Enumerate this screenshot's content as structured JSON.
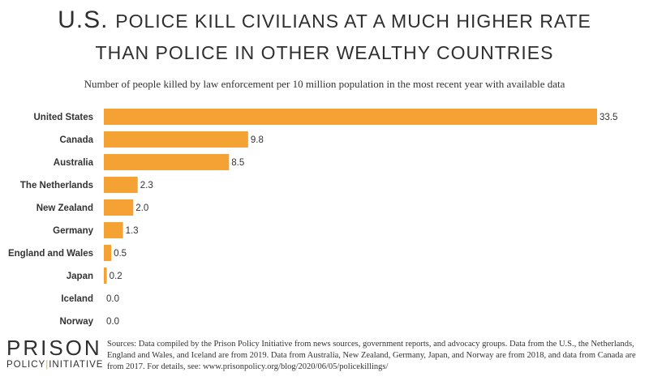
{
  "title": {
    "line1": {
      "big": "U.S.",
      "rest": "police kill civilians at a much higher rate"
    },
    "line2": {
      "rest": "than police in other wealthy countries"
    }
  },
  "subtitle": "Number of people killed by law enforcement per 10 million population in the most recent year with available data",
  "logo": {
    "line1": "PRISON",
    "line2a": "POLICY",
    "line2b": "INITIATIVE"
  },
  "sources": "Sources: Data compiled by the Prison Policy Initiative from news sources, government reports, and advocacy groups. Data from the U.S., the Netherlands, England and Wales, and Iceland are from 2019. Data from Australia, New Zealand, Germany, Japan, and Norway are from 2018, and data from Canada are from 2017. For details,  see: www.prisonpolicy.org/blog/2020/06/05/policekillings/",
  "colors": {
    "bar": "#f4a233",
    "text": "#333333"
  },
  "chart_data": {
    "type": "bar",
    "orientation": "horizontal",
    "categories": [
      "United States",
      "Canada",
      "Australia",
      "The Netherlands",
      "New Zealand",
      "Germany",
      "England and Wales",
      "Japan",
      "Iceland",
      "Norway"
    ],
    "values": [
      33.5,
      9.8,
      8.5,
      2.3,
      2.0,
      1.3,
      0.5,
      0.2,
      0.0,
      0.0
    ],
    "value_labels": [
      "33.5",
      "9.8",
      "8.5",
      "2.3",
      "2.0",
      "1.3",
      "0.5",
      "0.2",
      "0.0",
      "0.0"
    ],
    "xlim": [
      0,
      33.5
    ],
    "grid": false,
    "legend": "none"
  }
}
